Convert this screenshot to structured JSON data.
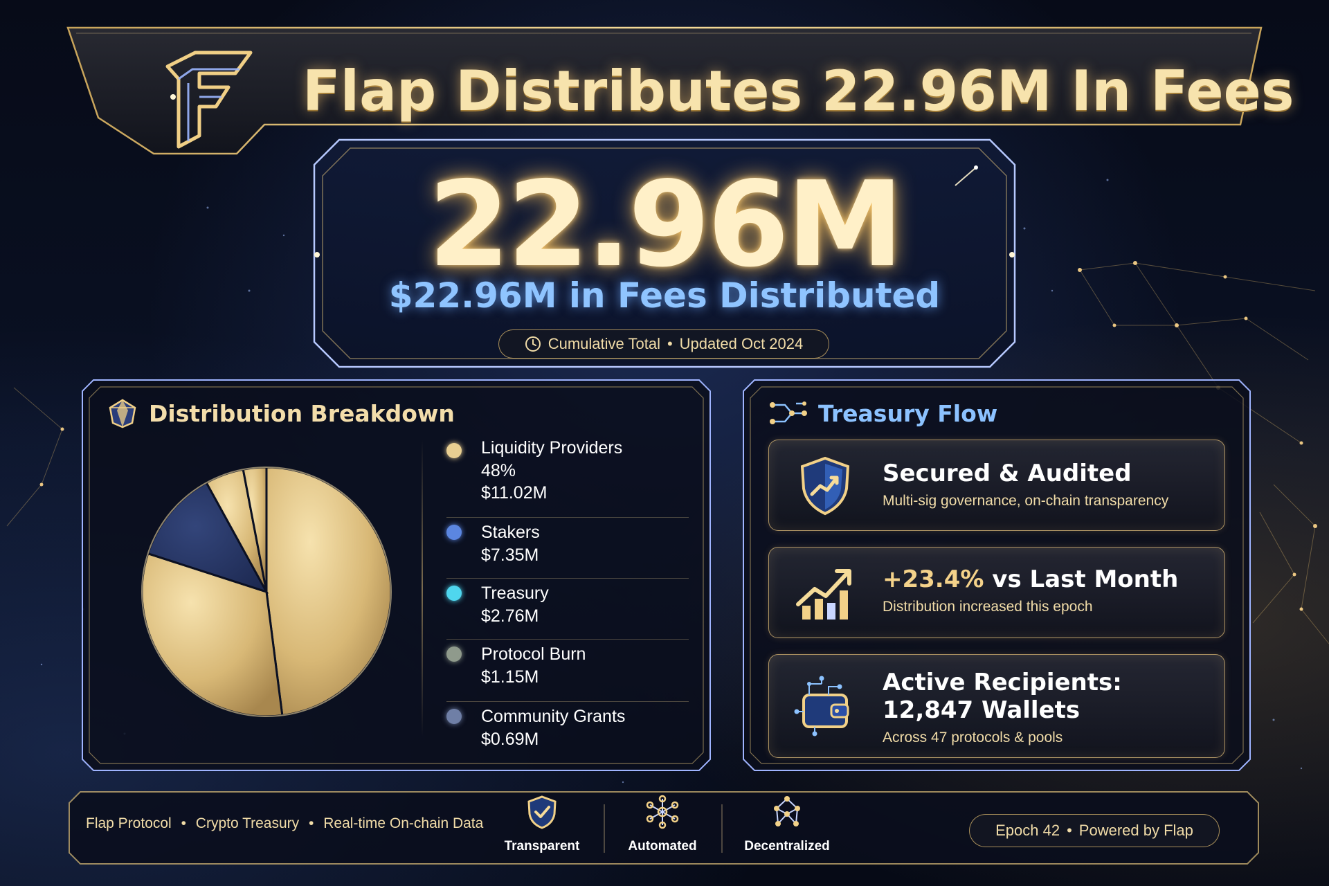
{
  "title": "Flap Distributes 22.96M In Fees",
  "hero": {
    "value": "22.96M",
    "subtitle": "$22.96M in Fees Distributed",
    "pill_left": "Cumulative Total",
    "pill_sep": "•",
    "pill_right": "Updated Oct 2024"
  },
  "breakdown": {
    "heading": "Distribution Breakdown",
    "items": [
      {
        "name": "Liquidity Providers",
        "pct": "48%",
        "amount": "$11.02M",
        "color": "#e9cf92"
      },
      {
        "name": "Stakers",
        "amount": "$7.35M",
        "color": "#5b86e0"
      },
      {
        "name": "Treasury",
        "amount": "$2.76M",
        "color": "#4fd6ee"
      },
      {
        "name": "Protocol Burn",
        "amount": "$1.15M",
        "color": "#8f9a8c"
      },
      {
        "name": "Community Grants",
        "amount": "$0.69M",
        "color": "#6f7fa6"
      }
    ]
  },
  "chart_data": {
    "type": "pie",
    "categories": [
      "Liquidity Providers",
      "Stakers",
      "Treasury",
      "Protocol Burn",
      "Community Grants"
    ],
    "values": [
      11.02,
      7.35,
      2.76,
      1.15,
      0.69
    ]
  },
  "treasury": {
    "heading": "Treasury Flow",
    "cards": [
      {
        "title": "Secured & Audited",
        "subtitle": "Multi-sig governance, on-chain transparency",
        "icon": "shield-chart-icon"
      },
      {
        "highlight": "+23.4%",
        "title_rest": " vs Last Month",
        "subtitle": "Distribution increased this epoch",
        "icon": "growth-chart-icon"
      },
      {
        "title_line1": "Active Recipients:",
        "title_line2": "12,847 Wallets",
        "subtitle": "Across 47 protocols & pools",
        "icon": "wallet-network-icon"
      }
    ]
  },
  "footer": {
    "tag1": "Flap Protocol",
    "tag2": "Crypto Treasury",
    "tag3": "Real-time On-chain Data",
    "sep": "•",
    "features": [
      "Transparent",
      "Automated",
      "Decentralized"
    ],
    "pill_left": "Epoch 42",
    "pill_sep": "•",
    "pill_right": "Powered by Flap"
  },
  "colors": {
    "gold": "#f4d28a",
    "blue": "#8cc2ff",
    "background": "#0a1124"
  }
}
